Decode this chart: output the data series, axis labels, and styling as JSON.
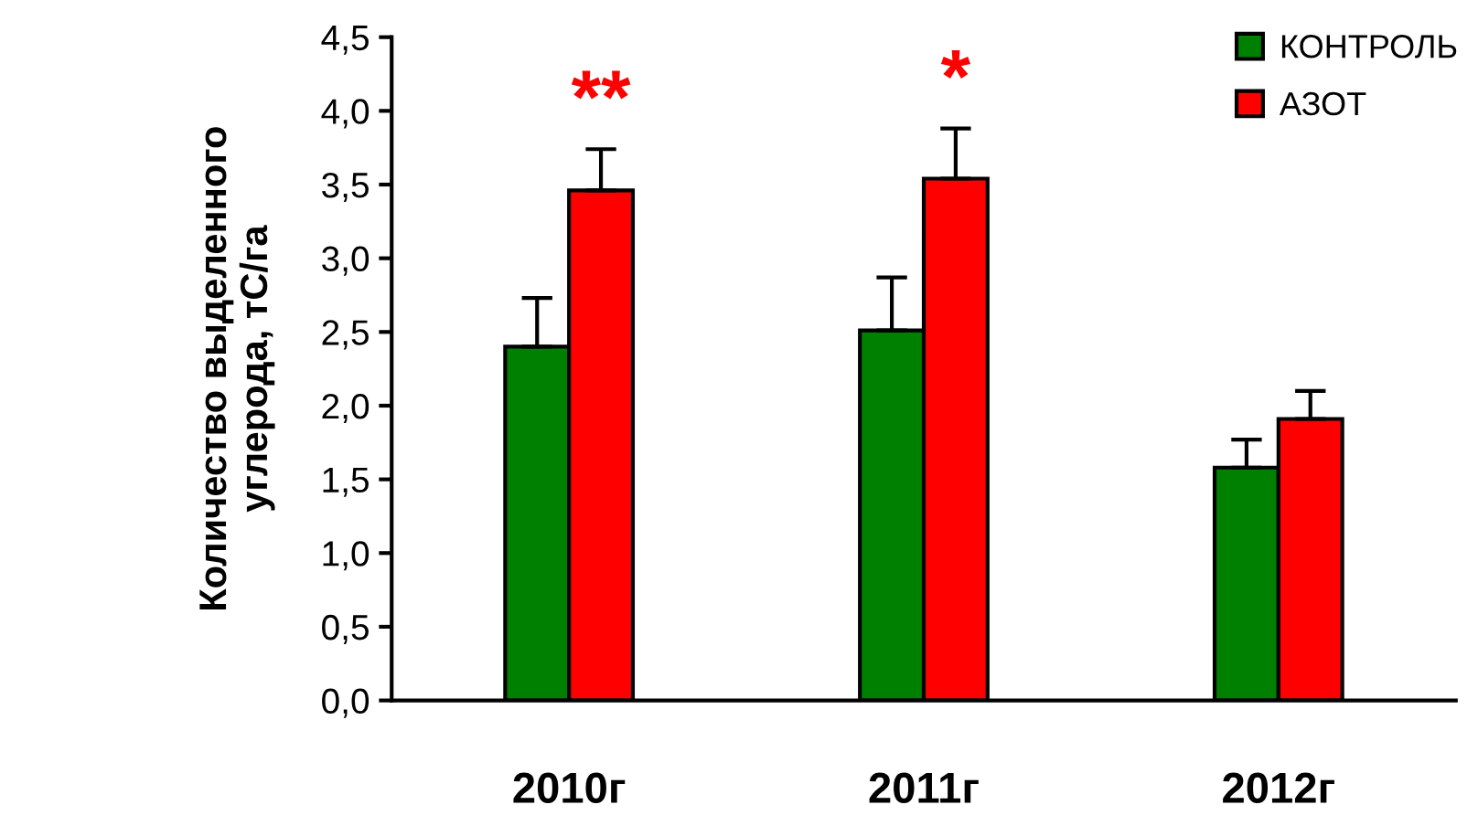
{
  "chart_data": {
    "type": "bar",
    "ylabel": "Количество выделенного\nуглерода, тС/га",
    "categories": [
      "2010г",
      "2011г",
      "2012г"
    ],
    "series": [
      {
        "name": "КОНТРОЛЬ",
        "color": "#008000",
        "values": [
          2.4,
          2.51,
          1.58
        ],
        "errors": [
          [
            2.4,
            2.73
          ],
          [
            2.51,
            2.87
          ],
          [
            1.58,
            1.77
          ]
        ]
      },
      {
        "name": "АЗОТ",
        "color": "#ff0000",
        "values": [
          3.46,
          3.54,
          1.91
        ],
        "errors": [
          [
            3.46,
            3.74
          ],
          [
            3.54,
            3.88
          ],
          [
            1.91,
            2.1
          ]
        ]
      }
    ],
    "ylim": [
      0,
      4.5
    ],
    "yticks": [
      {
        "value": 0,
        "label": "0,0"
      },
      {
        "value": 0.5,
        "label": "0,5"
      },
      {
        "value": 1.0,
        "label": "1,0"
      },
      {
        "value": 1.5,
        "label": "1,5"
      },
      {
        "value": 2.0,
        "label": "2,0"
      },
      {
        "value": 2.5,
        "label": "2,5"
      },
      {
        "value": 3.0,
        "label": "3,0"
      },
      {
        "value": 3.5,
        "label": "3,5"
      },
      {
        "value": 4.0,
        "label": "4,0"
      },
      {
        "value": 4.5,
        "label": "4,5"
      }
    ],
    "annotations": [
      "**",
      "*"
    ],
    "grid": false,
    "legend": "top right"
  }
}
